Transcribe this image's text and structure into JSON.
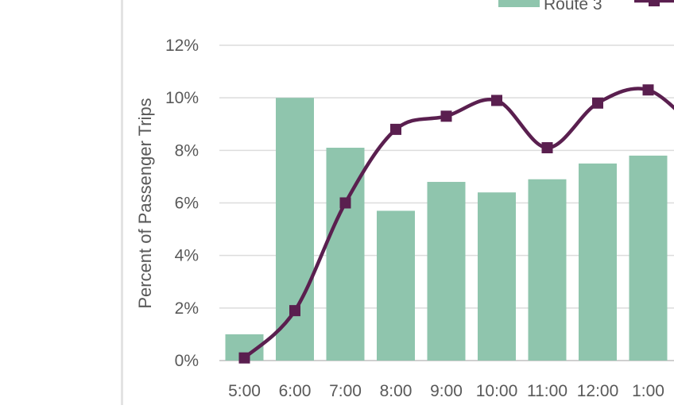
{
  "chart_data": {
    "type": "bar+line",
    "title": "",
    "xlabel": "",
    "ylabel": "Percent of Passenger Trips",
    "ylim": [
      0,
      12
    ],
    "yticks": [
      "0%",
      "2%",
      "4%",
      "6%",
      "8%",
      "10%",
      "12%"
    ],
    "categories": [
      "5:00",
      "6:00",
      "7:00",
      "8:00",
      "9:00",
      "10:00",
      "11:00",
      "12:00",
      "1:00"
    ],
    "grid": true,
    "legend": {
      "position": "top-right",
      "entries": [
        "Route 3"
      ]
    },
    "series": [
      {
        "name": "Route 3",
        "kind": "bar",
        "color": "#8fc5ad",
        "values": [
          1.0,
          10.0,
          8.1,
          5.7,
          6.8,
          6.4,
          6.9,
          7.5,
          7.8
        ]
      },
      {
        "name": "",
        "kind": "line",
        "color": "#5a1f4f",
        "marker": "square",
        "smooth": true,
        "values": [
          0.1,
          1.9,
          6.0,
          8.8,
          9.3,
          9.9,
          8.1,
          9.8,
          10.3
        ]
      }
    ]
  }
}
